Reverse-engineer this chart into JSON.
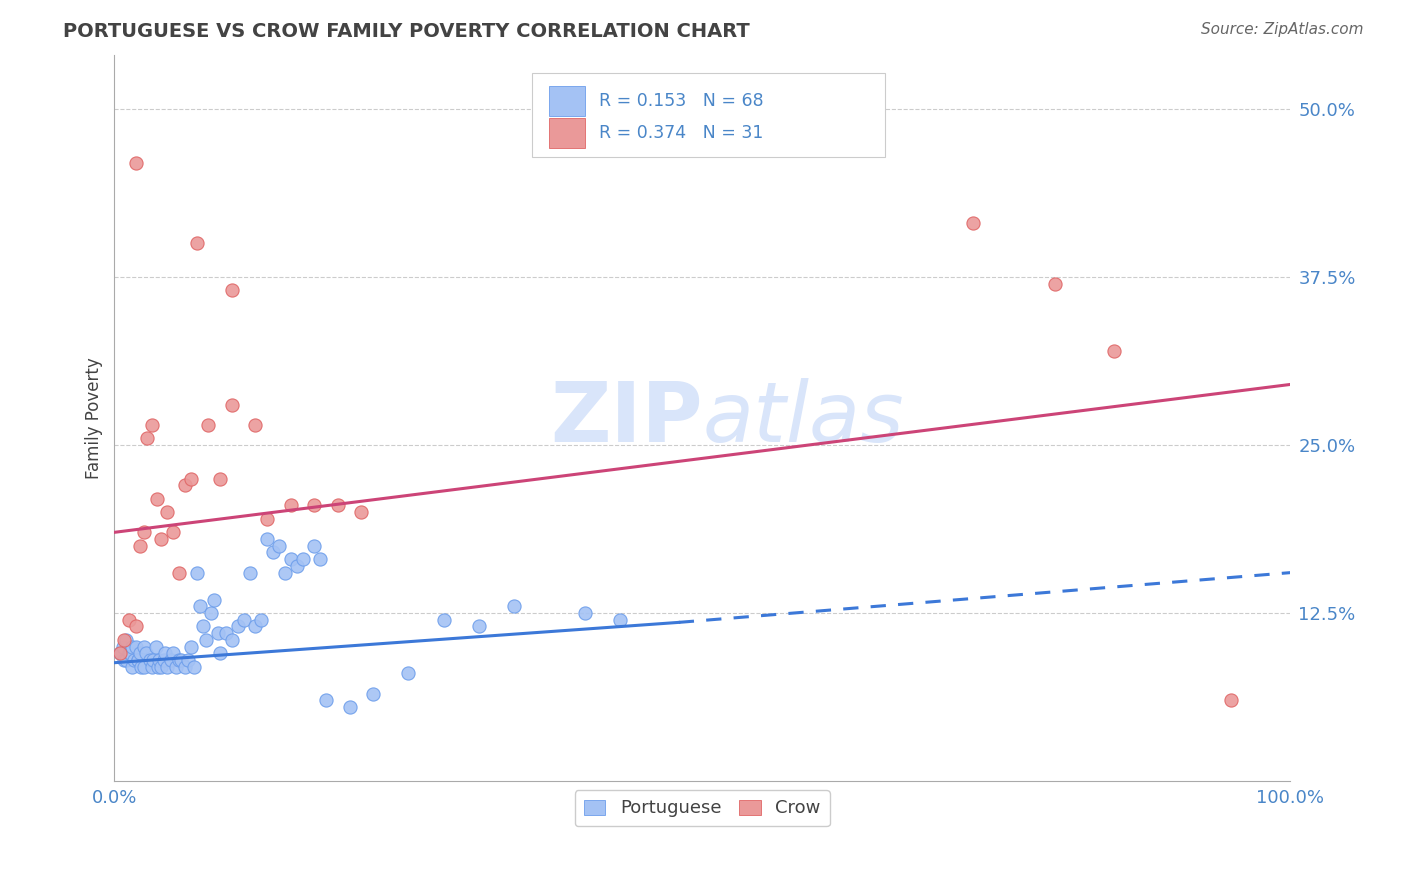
{
  "title": "PORTUGUESE VS CROW FAMILY POVERTY CORRELATION CHART",
  "source": "Source: ZipAtlas.com",
  "ylabel": "Family Poverty",
  "xlim": [
    0.0,
    1.0
  ],
  "ylim": [
    0.0,
    0.54
  ],
  "yticks": [
    0.0,
    0.125,
    0.25,
    0.375,
    0.5
  ],
  "yticklabels": [
    "",
    "12.5%",
    "25.0%",
    "37.5%",
    "50.0%"
  ],
  "xticks": [
    0.0,
    1.0
  ],
  "xticklabels": [
    "0.0%",
    "100.0%"
  ],
  "blue_color": "#a4c2f4",
  "blue_edge_color": "#6d9eeb",
  "pink_color": "#ea9999",
  "pink_edge_color": "#e06666",
  "blue_line_color": "#3c78d8",
  "pink_line_color": "#cc4477",
  "title_color": "#434343",
  "tick_label_color": "#4a86c8",
  "source_color": "#666666",
  "watermark_color": "#c9daf8",
  "grid_color": "#cccccc",
  "blue_scatter": [
    [
      0.005,
      0.095
    ],
    [
      0.007,
      0.1
    ],
    [
      0.008,
      0.09
    ],
    [
      0.01,
      0.105
    ],
    [
      0.01,
      0.09
    ],
    [
      0.012,
      0.095
    ],
    [
      0.013,
      0.095
    ],
    [
      0.015,
      0.1
    ],
    [
      0.015,
      0.085
    ],
    [
      0.017,
      0.09
    ],
    [
      0.018,
      0.1
    ],
    [
      0.02,
      0.09
    ],
    [
      0.02,
      0.09
    ],
    [
      0.022,
      0.095
    ],
    [
      0.023,
      0.085
    ],
    [
      0.025,
      0.1
    ],
    [
      0.025,
      0.085
    ],
    [
      0.027,
      0.095
    ],
    [
      0.03,
      0.09
    ],
    [
      0.032,
      0.085
    ],
    [
      0.033,
      0.09
    ],
    [
      0.035,
      0.1
    ],
    [
      0.037,
      0.085
    ],
    [
      0.038,
      0.09
    ],
    [
      0.04,
      0.085
    ],
    [
      0.042,
      0.09
    ],
    [
      0.043,
      0.095
    ],
    [
      0.045,
      0.085
    ],
    [
      0.048,
      0.09
    ],
    [
      0.05,
      0.095
    ],
    [
      0.052,
      0.085
    ],
    [
      0.055,
      0.09
    ],
    [
      0.057,
      0.09
    ],
    [
      0.06,
      0.085
    ],
    [
      0.063,
      0.09
    ],
    [
      0.065,
      0.1
    ],
    [
      0.068,
      0.085
    ],
    [
      0.07,
      0.155
    ],
    [
      0.073,
      0.13
    ],
    [
      0.075,
      0.115
    ],
    [
      0.078,
      0.105
    ],
    [
      0.082,
      0.125
    ],
    [
      0.085,
      0.135
    ],
    [
      0.088,
      0.11
    ],
    [
      0.09,
      0.095
    ],
    [
      0.095,
      0.11
    ],
    [
      0.1,
      0.105
    ],
    [
      0.105,
      0.115
    ],
    [
      0.11,
      0.12
    ],
    [
      0.115,
      0.155
    ],
    [
      0.12,
      0.115
    ],
    [
      0.125,
      0.12
    ],
    [
      0.13,
      0.18
    ],
    [
      0.135,
      0.17
    ],
    [
      0.14,
      0.175
    ],
    [
      0.145,
      0.155
    ],
    [
      0.15,
      0.165
    ],
    [
      0.155,
      0.16
    ],
    [
      0.16,
      0.165
    ],
    [
      0.17,
      0.175
    ],
    [
      0.175,
      0.165
    ],
    [
      0.18,
      0.06
    ],
    [
      0.2,
      0.055
    ],
    [
      0.22,
      0.065
    ],
    [
      0.25,
      0.08
    ],
    [
      0.28,
      0.12
    ],
    [
      0.31,
      0.115
    ],
    [
      0.34,
      0.13
    ],
    [
      0.4,
      0.125
    ],
    [
      0.43,
      0.12
    ]
  ],
  "pink_scatter": [
    [
      0.005,
      0.095
    ],
    [
      0.008,
      0.105
    ],
    [
      0.012,
      0.12
    ],
    [
      0.018,
      0.115
    ],
    [
      0.022,
      0.175
    ],
    [
      0.025,
      0.185
    ],
    [
      0.028,
      0.255
    ],
    [
      0.032,
      0.265
    ],
    [
      0.036,
      0.21
    ],
    [
      0.04,
      0.18
    ],
    [
      0.045,
      0.2
    ],
    [
      0.05,
      0.185
    ],
    [
      0.055,
      0.155
    ],
    [
      0.06,
      0.22
    ],
    [
      0.065,
      0.225
    ],
    [
      0.08,
      0.265
    ],
    [
      0.09,
      0.225
    ],
    [
      0.1,
      0.28
    ],
    [
      0.12,
      0.265
    ],
    [
      0.13,
      0.195
    ],
    [
      0.15,
      0.205
    ],
    [
      0.17,
      0.205
    ],
    [
      0.19,
      0.205
    ],
    [
      0.21,
      0.2
    ],
    [
      0.018,
      0.46
    ],
    [
      0.07,
      0.4
    ],
    [
      0.1,
      0.365
    ],
    [
      0.73,
      0.415
    ],
    [
      0.8,
      0.37
    ],
    [
      0.85,
      0.32
    ],
    [
      0.95,
      0.06
    ]
  ],
  "blue_line": [
    [
      0.0,
      0.088
    ],
    [
      0.48,
      0.118
    ]
  ],
  "blue_dashed_line": [
    [
      0.48,
      0.118
    ],
    [
      1.0,
      0.155
    ]
  ],
  "pink_line": [
    [
      0.0,
      0.185
    ],
    [
      1.0,
      0.295
    ]
  ]
}
